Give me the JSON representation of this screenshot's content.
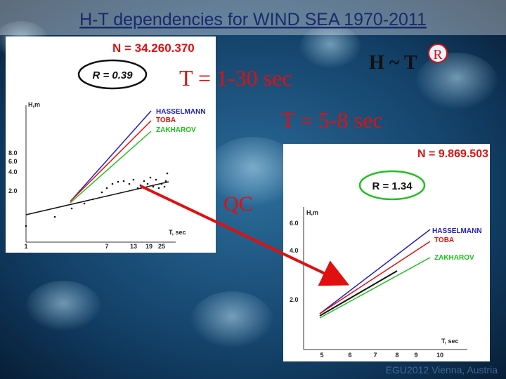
{
  "title": "H-T dependencies for WIND SEA 1970-2011",
  "left_panel": {
    "n_label": "N = 34.260.370",
    "r_label": "R = 0.39",
    "y_axis_label": "H,m",
    "x_axis_label": "T, sec",
    "yticks": [
      "8.0",
      "6.0",
      "4.0",
      "2.0"
    ],
    "xticks": [
      "1",
      "7",
      "13",
      "19",
      "25"
    ],
    "legend": [
      "HASSELMANN",
      "TOBA",
      "ZAKHAROV"
    ]
  },
  "period_all": "T = 1-30 sec",
  "formula": {
    "base": "H ~ T",
    "exponent": "R"
  },
  "period_qc": "T = 5-8 sec",
  "qc_label": "QC",
  "right_panel": {
    "n_label": "N = 9.869.503",
    "r_label": "R = 1.34",
    "y_axis_label": "H,m",
    "x_axis_label": "T, sec",
    "yticks": [
      "6.0",
      "4.0",
      "2.0"
    ],
    "xticks": [
      "5",
      "6",
      "7",
      "8",
      "9",
      "10"
    ],
    "legend": [
      "HASSELMANN",
      "TOBA",
      "ZAKHAROV"
    ]
  },
  "footer": "EGU2012 Vienna, Austria"
}
